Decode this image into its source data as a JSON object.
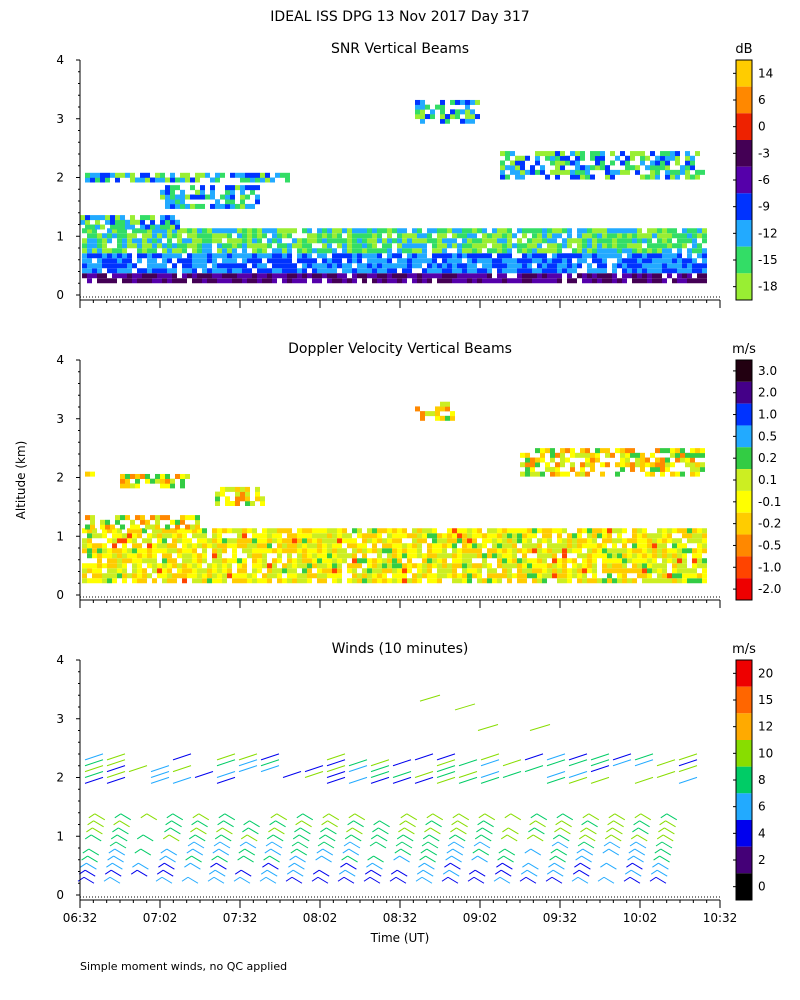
{
  "page": {
    "title": "IDEAL ISS DPG  13 Nov 2017 Day 317",
    "footnote": "Simple moment winds, no QC applied",
    "ylabel": "Altitude (km)",
    "xlabel": "Time (UT)"
  },
  "chart_data": [
    {
      "type": "heatmap",
      "title": "SNR Vertical Beams",
      "ylim": [
        0,
        4
      ],
      "yticks": [
        "0",
        "1",
        "2",
        "3",
        "4"
      ],
      "colorbar": {
        "unit": "dB",
        "labels": [
          "14",
          "6",
          "0",
          "-3",
          "-6",
          "-9",
          "-12",
          "-15",
          "-18"
        ],
        "colors": [
          "#ffcc00",
          "#ff8800",
          "#ee2200",
          "#440055",
          "#5500aa",
          "#0033ff",
          "#22aaff",
          "#33dd66",
          "#99ee33"
        ]
      }
    },
    {
      "type": "heatmap",
      "title": "Doppler Velocity Vertical Beams",
      "ylim": [
        0,
        4
      ],
      "yticks": [
        "0",
        "1",
        "2",
        "3",
        "4"
      ],
      "colorbar": {
        "unit": "m/s",
        "labels": [
          "3.0",
          "2.0",
          "1.0",
          "0.5",
          "0.2",
          "0.1",
          "-0.1",
          "-0.2",
          "-0.5",
          "-1.0",
          "-2.0"
        ],
        "colors": [
          "#220011",
          "#440088",
          "#0033ff",
          "#22aaff",
          "#33cc44",
          "#ccee22",
          "#ffff00",
          "#ffcc00",
          "#ff8800",
          "#ff4400",
          "#ee0000"
        ]
      }
    },
    {
      "type": "wind_barbs",
      "title": "Winds (10 minutes)",
      "ylim": [
        0,
        4
      ],
      "yticks": [
        "0",
        "1",
        "2",
        "3",
        "4"
      ],
      "xticks": [
        "06:32",
        "07:02",
        "07:32",
        "08:02",
        "08:32",
        "09:02",
        "09:32",
        "10:02",
        "10:32"
      ],
      "colorbar": {
        "unit": "m/s",
        "labels": [
          "20",
          "15",
          "12",
          "10",
          "8",
          "6",
          "4",
          "2",
          "0"
        ],
        "colors": [
          "#ee0000",
          "#ff6600",
          "#ffaa00",
          "#88dd00",
          "#00cc66",
          "#22aaff",
          "#0000ee",
          "#440077",
          "#000000"
        ]
      }
    }
  ]
}
